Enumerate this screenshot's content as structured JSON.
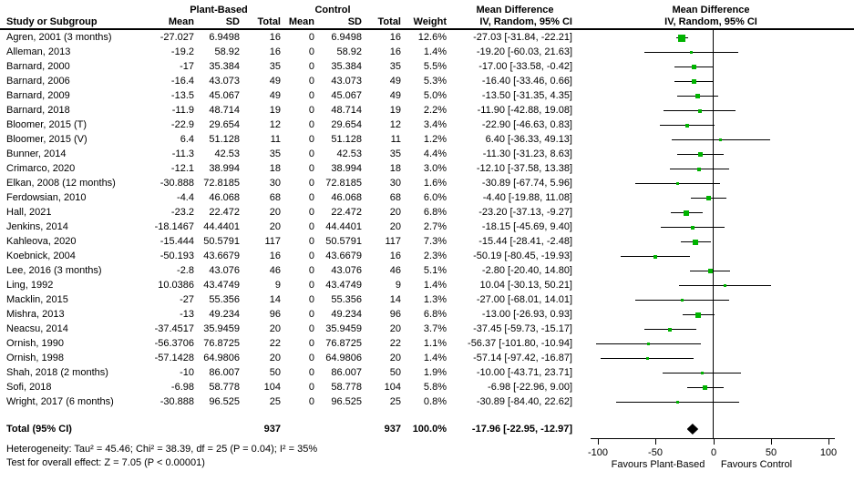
{
  "headers": {
    "study": "Study or Subgroup",
    "group1": "Plant-Based",
    "group2": "Control",
    "mean": "Mean",
    "sd": "SD",
    "total": "Total",
    "weight": "Weight",
    "md_title": "Mean Difference",
    "md_subtitle": "IV, Random, 95% CI"
  },
  "chart_data": {
    "type": "scatter",
    "subtype": "forest_plot_meta_analysis",
    "title": "Mean Difference",
    "effect_measure": "IV, Random, 95% CI",
    "xlim": [
      -100,
      100
    ],
    "x_ticks": [
      "-100",
      "-50",
      "0",
      "50",
      "100"
    ],
    "x_tick_values": [
      -100,
      -50,
      0,
      50,
      100
    ],
    "favours_left": "Favours Plant-Based",
    "favours_right": "Favours Control",
    "marker_color": "#00b300",
    "studies": [
      {
        "study": "Agren, 2001 (3 months)",
        "mean": "-27.027",
        "sd": "6.9498",
        "total": "16",
        "c_mean": "0",
        "c_sd": "6.9498",
        "c_total": "16",
        "weight": "12.6%",
        "weight_value": 12.6,
        "ci_label": "-27.03 [-31.84, -22.21]",
        "md": -27.03,
        "lo": -31.84,
        "hi": -22.21
      },
      {
        "study": "Alleman, 2013",
        "mean": "-19.2",
        "sd": "58.92",
        "total": "16",
        "c_mean": "0",
        "c_sd": "58.92",
        "c_total": "16",
        "weight": "1.4%",
        "weight_value": 1.4,
        "ci_label": "-19.20 [-60.03, 21.63]",
        "md": -19.2,
        "lo": -60.03,
        "hi": 21.63
      },
      {
        "study": "Barnard, 2000",
        "mean": "-17",
        "sd": "35.384",
        "total": "35",
        "c_mean": "0",
        "c_sd": "35.384",
        "c_total": "35",
        "weight": "5.5%",
        "weight_value": 5.5,
        "ci_label": "-17.00 [-33.58, -0.42]",
        "md": -17.0,
        "lo": -33.58,
        "hi": -0.42
      },
      {
        "study": "Barnard, 2006",
        "mean": "-16.4",
        "sd": "43.073",
        "total": "49",
        "c_mean": "0",
        "c_sd": "43.073",
        "c_total": "49",
        "weight": "5.3%",
        "weight_value": 5.3,
        "ci_label": "-16.40 [-33.46, 0.66]",
        "md": -16.4,
        "lo": -33.46,
        "hi": 0.66
      },
      {
        "study": "Barnard, 2009",
        "mean": "-13.5",
        "sd": "45.067",
        "total": "49",
        "c_mean": "0",
        "c_sd": "45.067",
        "c_total": "49",
        "weight": "5.0%",
        "weight_value": 5.0,
        "ci_label": "-13.50 [-31.35, 4.35]",
        "md": -13.5,
        "lo": -31.35,
        "hi": 4.35
      },
      {
        "study": "Barnard, 2018",
        "mean": "-11.9",
        "sd": "48.714",
        "total": "19",
        "c_mean": "0",
        "c_sd": "48.714",
        "c_total": "19",
        "weight": "2.2%",
        "weight_value": 2.2,
        "ci_label": "-11.90 [-42.88, 19.08]",
        "md": -11.9,
        "lo": -42.88,
        "hi": 19.08
      },
      {
        "study": "Bloomer, 2015 (T)",
        "mean": "-22.9",
        "sd": "29.654",
        "total": "12",
        "c_mean": "0",
        "c_sd": "29.654",
        "c_total": "12",
        "weight": "3.4%",
        "weight_value": 3.4,
        "ci_label": "-22.90 [-46.63, 0.83]",
        "md": -22.9,
        "lo": -46.63,
        "hi": 0.83
      },
      {
        "study": "Bloomer, 2015 (V)",
        "mean": "6.4",
        "sd": "51.128",
        "total": "11",
        "c_mean": "0",
        "c_sd": "51.128",
        "c_total": "11",
        "weight": "1.2%",
        "weight_value": 1.2,
        "ci_label": "6.40 [-36.33, 49.13]",
        "md": 6.4,
        "lo": -36.33,
        "hi": 49.13
      },
      {
        "study": "Bunner, 2014",
        "mean": "-11.3",
        "sd": "42.53",
        "total": "35",
        "c_mean": "0",
        "c_sd": "42.53",
        "c_total": "35",
        "weight": "4.4%",
        "weight_value": 4.4,
        "ci_label": "-11.30 [-31.23, 8.63]",
        "md": -11.3,
        "lo": -31.23,
        "hi": 8.63
      },
      {
        "study": "Crimarco, 2020",
        "mean": "-12.1",
        "sd": "38.994",
        "total": "18",
        "c_mean": "0",
        "c_sd": "38.994",
        "c_total": "18",
        "weight": "3.0%",
        "weight_value": 3.0,
        "ci_label": "-12.10 [-37.58, 13.38]",
        "md": -12.1,
        "lo": -37.58,
        "hi": 13.38
      },
      {
        "study": "Elkan, 2008 (12 months)",
        "mean": "-30.888",
        "sd": "72.8185",
        "total": "30",
        "c_mean": "0",
        "c_sd": "72.8185",
        "c_total": "30",
        "weight": "1.6%",
        "weight_value": 1.6,
        "ci_label": "-30.89 [-67.74, 5.96]",
        "md": -30.89,
        "lo": -67.74,
        "hi": 5.96
      },
      {
        "study": "Ferdowsian, 2010",
        "mean": "-4.4",
        "sd": "46.068",
        "total": "68",
        "c_mean": "0",
        "c_sd": "46.068",
        "c_total": "68",
        "weight": "6.0%",
        "weight_value": 6.0,
        "ci_label": "-4.40 [-19.88, 11.08]",
        "md": -4.4,
        "lo": -19.88,
        "hi": 11.08
      },
      {
        "study": "Hall, 2021",
        "mean": "-23.2",
        "sd": "22.472",
        "total": "20",
        "c_mean": "0",
        "c_sd": "22.472",
        "c_total": "20",
        "weight": "6.8%",
        "weight_value": 6.8,
        "ci_label": "-23.20 [-37.13, -9.27]",
        "md": -23.2,
        "lo": -37.13,
        "hi": -9.27
      },
      {
        "study": "Jenkins, 2014",
        "mean": "-18.1467",
        "sd": "44.4401",
        "total": "20",
        "c_mean": "0",
        "c_sd": "44.4401",
        "c_total": "20",
        "weight": "2.7%",
        "weight_value": 2.7,
        "ci_label": "-18.15 [-45.69, 9.40]",
        "md": -18.15,
        "lo": -45.69,
        "hi": 9.4
      },
      {
        "study": "Kahleova, 2020",
        "mean": "-15.444",
        "sd": "50.5791",
        "total": "117",
        "c_mean": "0",
        "c_sd": "50.5791",
        "c_total": "117",
        "weight": "7.3%",
        "weight_value": 7.3,
        "ci_label": "-15.44 [-28.41, -2.48]",
        "md": -15.44,
        "lo": -28.41,
        "hi": -2.48
      },
      {
        "study": "Koebnick, 2004",
        "mean": "-50.193",
        "sd": "43.6679",
        "total": "16",
        "c_mean": "0",
        "c_sd": "43.6679",
        "c_total": "16",
        "weight": "2.3%",
        "weight_value": 2.3,
        "ci_label": "-50.19 [-80.45, -19.93]",
        "md": -50.19,
        "lo": -80.45,
        "hi": -19.93
      },
      {
        "study": "Lee, 2016 (3 months)",
        "mean": "-2.8",
        "sd": "43.076",
        "total": "46",
        "c_mean": "0",
        "c_sd": "43.076",
        "c_total": "46",
        "weight": "5.1%",
        "weight_value": 5.1,
        "ci_label": "-2.80 [-20.40, 14.80]",
        "md": -2.8,
        "lo": -20.4,
        "hi": 14.8
      },
      {
        "study": "Ling, 1992",
        "mean": "10.0386",
        "sd": "43.4749",
        "total": "9",
        "c_mean": "0",
        "c_sd": "43.4749",
        "c_total": "9",
        "weight": "1.4%",
        "weight_value": 1.4,
        "ci_label": "10.04 [-30.13, 50.21]",
        "md": 10.04,
        "lo": -30.13,
        "hi": 50.21
      },
      {
        "study": "Macklin, 2015",
        "mean": "-27",
        "sd": "55.356",
        "total": "14",
        "c_mean": "0",
        "c_sd": "55.356",
        "c_total": "14",
        "weight": "1.3%",
        "weight_value": 1.3,
        "ci_label": "-27.00 [-68.01, 14.01]",
        "md": -27.0,
        "lo": -68.01,
        "hi": 14.01
      },
      {
        "study": "Mishra, 2013",
        "mean": "-13",
        "sd": "49.234",
        "total": "96",
        "c_mean": "0",
        "c_sd": "49.234",
        "c_total": "96",
        "weight": "6.8%",
        "weight_value": 6.8,
        "ci_label": "-13.00 [-26.93, 0.93]",
        "md": -13.0,
        "lo": -26.93,
        "hi": 0.93
      },
      {
        "study": "Neacsu, 2014",
        "mean": "-37.4517",
        "sd": "35.9459",
        "total": "20",
        "c_mean": "0",
        "c_sd": "35.9459",
        "c_total": "20",
        "weight": "3.7%",
        "weight_value": 3.7,
        "ci_label": "-37.45 [-59.73, -15.17]",
        "md": -37.45,
        "lo": -59.73,
        "hi": -15.17
      },
      {
        "study": "Ornish, 1990",
        "mean": "-56.3706",
        "sd": "76.8725",
        "total": "22",
        "c_mean": "0",
        "c_sd": "76.8725",
        "c_total": "22",
        "weight": "1.1%",
        "weight_value": 1.1,
        "ci_label": "-56.37 [-101.80, -10.94]",
        "md": -56.37,
        "lo": -101.8,
        "hi": -10.94
      },
      {
        "study": "Ornish, 1998",
        "mean": "-57.1428",
        "sd": "64.9806",
        "total": "20",
        "c_mean": "0",
        "c_sd": "64.9806",
        "c_total": "20",
        "weight": "1.4%",
        "weight_value": 1.4,
        "ci_label": "-57.14 [-97.42, -16.87]",
        "md": -57.14,
        "lo": -97.42,
        "hi": -16.87
      },
      {
        "study": "Shah, 2018 (2 months)",
        "mean": "-10",
        "sd": "86.007",
        "total": "50",
        "c_mean": "0",
        "c_sd": "86.007",
        "c_total": "50",
        "weight": "1.9%",
        "weight_value": 1.9,
        "ci_label": "-10.00 [-43.71, 23.71]",
        "md": -10.0,
        "lo": -43.71,
        "hi": 23.71
      },
      {
        "study": "Sofi, 2018",
        "mean": "-6.98",
        "sd": "58.778",
        "total": "104",
        "c_mean": "0",
        "c_sd": "58.778",
        "c_total": "104",
        "weight": "5.8%",
        "weight_value": 5.8,
        "ci_label": "-6.98 [-22.96, 9.00]",
        "md": -6.98,
        "lo": -22.96,
        "hi": 9.0
      },
      {
        "study": "Wright, 2017 (6 months)",
        "mean": "-30.888",
        "sd": "96.525",
        "total": "25",
        "c_mean": "0",
        "c_sd": "96.525",
        "c_total": "25",
        "weight": "0.8%",
        "weight_value": 0.8,
        "ci_label": "-30.89 [-84.40, 22.62]",
        "md": -30.89,
        "lo": -84.4,
        "hi": 22.62
      }
    ],
    "total": {
      "label": "Total (95% CI)",
      "total": "937",
      "c_total": "937",
      "weight": "100.0%",
      "weight_value": 100.0,
      "ci_label": "-17.96 [-22.95, -12.97]",
      "md": -17.96,
      "lo": -22.95,
      "hi": -12.97
    },
    "heterogeneity": "Heterogeneity: Tau² = 45.46; Chi² = 38.39, df = 25 (P = 0.04); I² = 35%",
    "overall_effect": "Test for overall effect: Z = 7.05 (P < 0.00001)"
  }
}
